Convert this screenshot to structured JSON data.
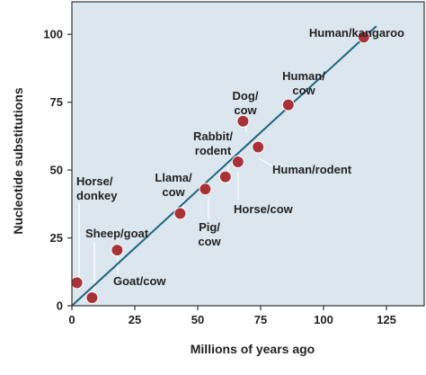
{
  "chart_data": {
    "type": "scatter",
    "title": "",
    "xlabel": "Millions of years ago",
    "ylabel": "Nucleotide substitutions",
    "xlim": [
      0,
      140
    ],
    "ylim": [
      0,
      112
    ],
    "x_ticks": [
      0,
      25,
      50,
      75,
      100,
      125
    ],
    "y_ticks": [
      0,
      25,
      50,
      75,
      100
    ],
    "grid": false,
    "colors": {
      "background": "#dbe6ef",
      "point": "#a83238",
      "point_stroke": "#ffffff",
      "trend_line": "#1f6280",
      "leader_line": "#ffffff",
      "frame": "#333333"
    },
    "points": [
      {
        "x": 2,
        "y": 8.5,
        "label": [
          "Horse/",
          "donkey"
        ]
      },
      {
        "x": 8,
        "y": 3,
        "label": [
          "Sheep/goat"
        ]
      },
      {
        "x": 18,
        "y": 20.5,
        "label": [
          "Goat/cow"
        ]
      },
      {
        "x": 43,
        "y": 34,
        "label": [
          "Llama/",
          "cow"
        ]
      },
      {
        "x": 53,
        "y": 43,
        "label": [
          "Pig/",
          "cow"
        ]
      },
      {
        "x": 61,
        "y": 47.5,
        "label": [
          "Rabbit/",
          "rodent"
        ]
      },
      {
        "x": 66,
        "y": 53,
        "label": [
          "Horse/cow"
        ]
      },
      {
        "x": 68,
        "y": 68,
        "label": [
          "Dog/",
          "cow"
        ]
      },
      {
        "x": 74,
        "y": 58.5,
        "label": [
          "Human/rodent"
        ]
      },
      {
        "x": 86,
        "y": 74,
        "label": [
          "Human/",
          "cow"
        ]
      },
      {
        "x": 116,
        "y": 99,
        "label": [
          "Human/kangaroo"
        ]
      }
    ],
    "trend_line": {
      "x": [
        0,
        121
      ],
      "y": [
        0,
        103
      ]
    }
  }
}
